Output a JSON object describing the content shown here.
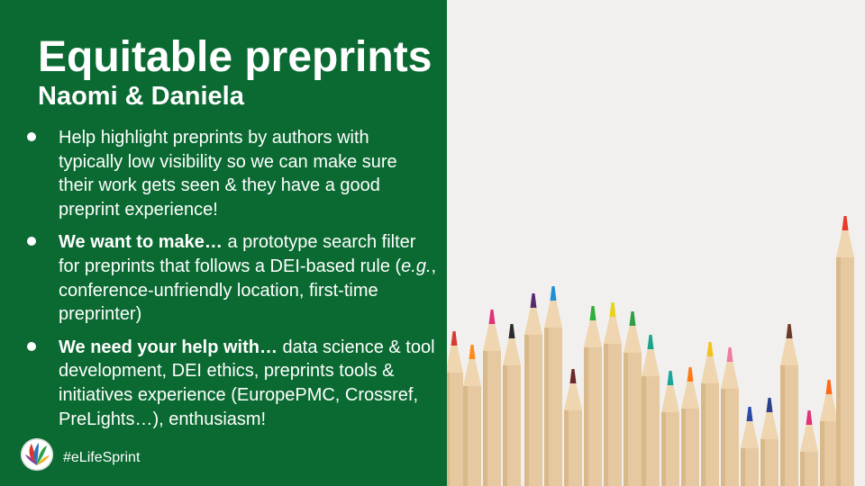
{
  "slide": {
    "title": "Equitable preprints",
    "subtitle": "Naomi & Daniela",
    "bullets": [
      {
        "bold": "",
        "text": "Help highlight preprints by authors with typically low visibility so we can make sure their work gets seen & they have a good preprint experience!"
      },
      {
        "bold": "We want to make…",
        "text": " a prototype search filter for preprints that follows a DEI-based rule (",
        "italic": "e.g.",
        "text2": ", conference-unfriendly location, first-time preprinter)"
      },
      {
        "bold": "We need your help with…",
        "text": " data science & tool development, DEI ethics, preprints tools & initiatives experience (EuropePMC, Crossref, PreLights…), enthusiasm!"
      }
    ],
    "hashtag": "#eLifeSprint",
    "logo_icon": "elife-sprint-logo-icon",
    "photo_icon": "colored-pencils-photo",
    "colors": {
      "panel": "#0a6a32",
      "text": "#ffffff",
      "photo_bg": "#f1f0ee"
    }
  }
}
